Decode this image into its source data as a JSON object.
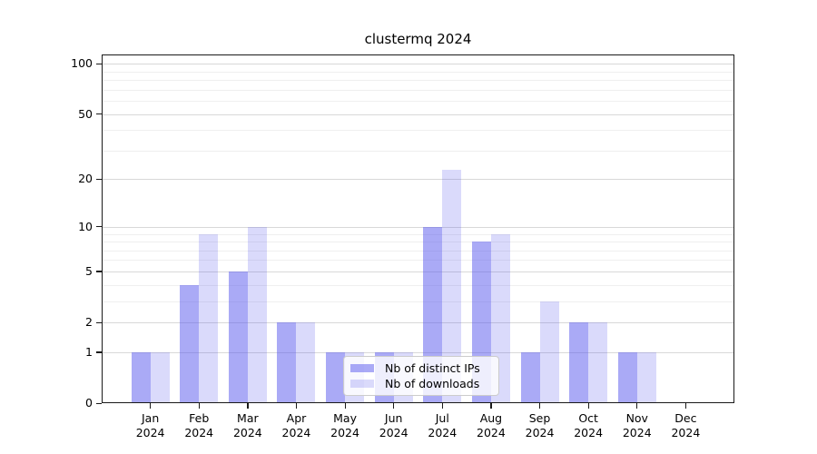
{
  "title": "clustermq 2024",
  "legend": {
    "items": [
      {
        "label": "Nb of distinct IPs",
        "series_key": "distinct_ips"
      },
      {
        "label": "Nb of downloads",
        "series_key": "downloads"
      }
    ],
    "position": "lower center"
  },
  "colors": {
    "bar_base": "#5555ee",
    "bar_dark": "rgba(85,85,238,0.50)",
    "bar_light": "rgba(85,85,238,0.22)",
    "grid_major": "#d8d8d8",
    "grid_minor": "#efefef",
    "axis": "#1a1a1a",
    "background": "#ffffff"
  },
  "chart_data": {
    "type": "bar",
    "title": "clustermq 2024",
    "categories": [
      "Jan 2024",
      "Feb 2024",
      "Mar 2024",
      "Apr 2024",
      "May 2024",
      "Jun 2024",
      "Jul 2024",
      "Aug 2024",
      "Sep 2024",
      "Oct 2024",
      "Nov 2024",
      "Dec 2024"
    ],
    "series": [
      {
        "name": "Nb of distinct IPs",
        "values": [
          1,
          4,
          5,
          2,
          1,
          1,
          10,
          8,
          1,
          2,
          1,
          0
        ]
      },
      {
        "name": "Nb of downloads",
        "values": [
          1,
          9,
          10,
          2,
          1,
          1,
          23,
          9,
          3,
          2,
          1,
          0
        ]
      }
    ],
    "xlabel": "",
    "ylabel": "",
    "yscale": "log1p",
    "yticks": [
      0,
      1,
      2,
      5,
      10,
      20,
      50,
      100
    ],
    "minor_yticks": [
      3,
      4,
      6,
      7,
      8,
      9,
      30,
      40,
      60,
      70,
      80,
      90
    ],
    "ylim": [
      0,
      113
    ],
    "grid": true,
    "legend_position": "lower center"
  }
}
